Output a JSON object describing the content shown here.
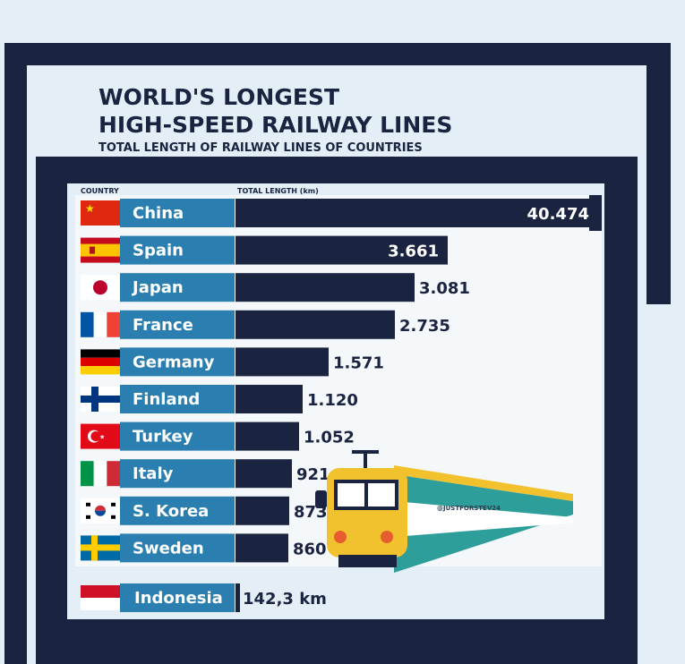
{
  "title_line1": "WORLD'S LONGEST",
  "title_line2": "HIGH-SPEED RAILWAY LINES",
  "subtitle": "TOTAL LENGTH OF RAILWAY LINES OF COUNTRIES",
  "col_country": "COUNTRY",
  "col_length": "TOTAL LENGTH (km)",
  "watermark": "@JUSTFORSTEV24",
  "colors": {
    "navy": "#1a2340",
    "label_blue": "#2b7fb0",
    "background": "#e4eef6",
    "train_yellow": "#f2c12e",
    "train_teal": "#2e9e9a"
  },
  "chart_data": {
    "type": "bar",
    "orientation": "horizontal",
    "categories": [
      "China",
      "Spain",
      "Japan",
      "France",
      "Germany",
      "Finland",
      "Turkey",
      "Italy",
      "S. Korea",
      "Sweden"
    ],
    "values": [
      40474,
      3661,
      3081,
      2735,
      1571,
      1120,
      1052,
      921,
      873,
      860
    ],
    "value_labels": [
      "40.474",
      "3.661",
      "3.081",
      "2.735",
      "1.571",
      "1.120",
      "1.052",
      "921",
      "873",
      "860"
    ],
    "flags": [
      "china-flag-icon",
      "spain-flag-icon",
      "japan-flag-icon",
      "france-flag-icon",
      "germany-flag-icon",
      "finland-flag-icon",
      "turkey-flag-icon",
      "italy-flag-icon",
      "south-korea-flag-icon",
      "sweden-flag-icon"
    ],
    "extra": {
      "category": "Indonesia",
      "value": 142.3,
      "value_label": "142,3 km",
      "flag": "indonesia-flag-icon"
    },
    "grid": false,
    "legend": "none"
  }
}
